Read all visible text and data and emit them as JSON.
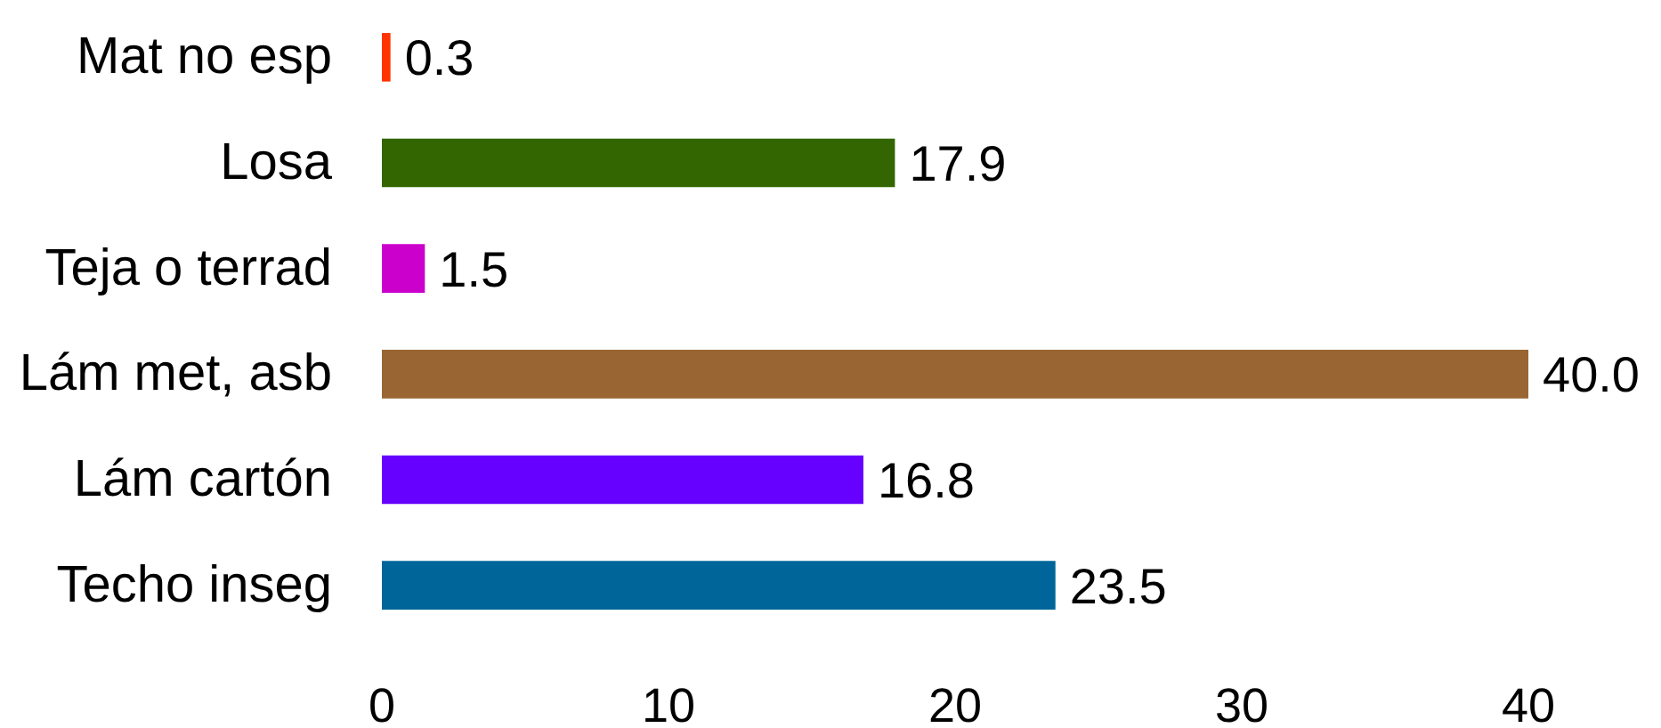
{
  "chart_data": {
    "type": "bar",
    "orientation": "horizontal",
    "categories": [
      "Mat no esp",
      "Losa",
      "Teja o terrad",
      "Lám met, asb",
      "Lám cartón",
      "Techo inseg"
    ],
    "values": [
      0.3,
      17.9,
      1.5,
      40.0,
      16.8,
      23.5
    ],
    "value_labels": [
      "0.3",
      "17.9",
      "1.5",
      "40.0",
      "16.8",
      "23.5"
    ],
    "colors": [
      "#ff3300",
      "#336600",
      "#cc00cc",
      "#996633",
      "#6600ff",
      "#006699"
    ],
    "xlim": [
      0,
      40
    ],
    "xticks": [
      0,
      10,
      20,
      30,
      40
    ],
    "grid": false
  }
}
